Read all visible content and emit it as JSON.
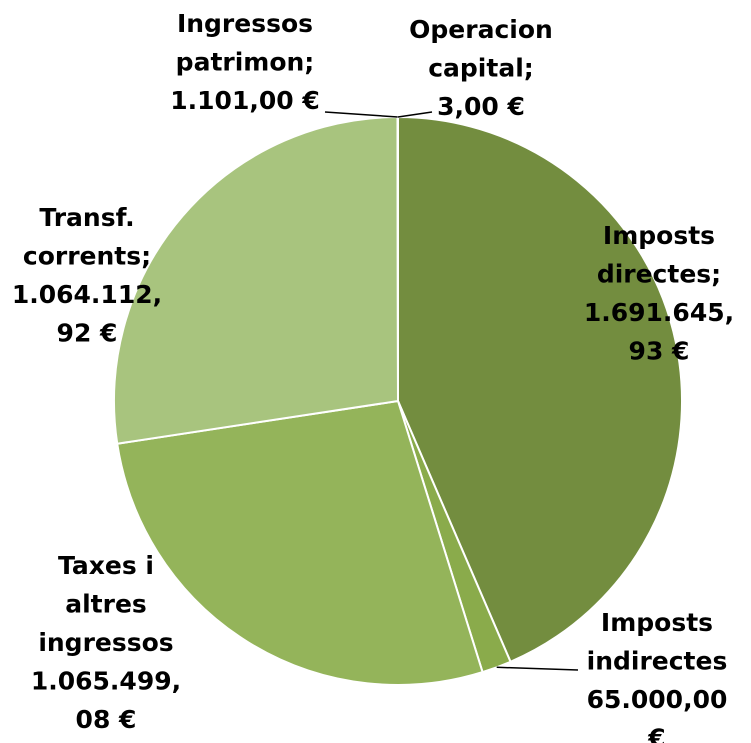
{
  "chart_data": {
    "type": "pie",
    "categories": [
      "Imposts directes",
      "Imposts indirectes",
      "Taxes i altres ingressos",
      "Transf. corrents",
      "Ingressos patrimon",
      "Operacion capital"
    ],
    "values": [
      1691645.93,
      65000.0,
      1065499.08,
      1064112.92,
      1101.0,
      3.0
    ],
    "colors": [
      "#738d3f",
      "#8aab4b",
      "#94b45a",
      "#a8c47e",
      "#b6cf91",
      "#c4d9a5"
    ],
    "data_labels": [
      [
        "Imposts",
        "directes;",
        "1.691.645,",
        "93 €"
      ],
      [
        "Imposts",
        "indirectes",
        "65.000,00",
        "€"
      ],
      [
        "Taxes i",
        "altres",
        "ingressos",
        "1.065.499,",
        "08 €"
      ],
      [
        "Transf.",
        "corrents;",
        "1.064.112,",
        "92 €"
      ],
      [
        "Ingressos",
        "patrimon;",
        "1.101,00 €"
      ],
      [
        "Operacion",
        "capital;",
        "3,00 €"
      ]
    ],
    "start_angle": "12 o'clock",
    "direction": "clockwise",
    "legend": "none",
    "title": ""
  }
}
